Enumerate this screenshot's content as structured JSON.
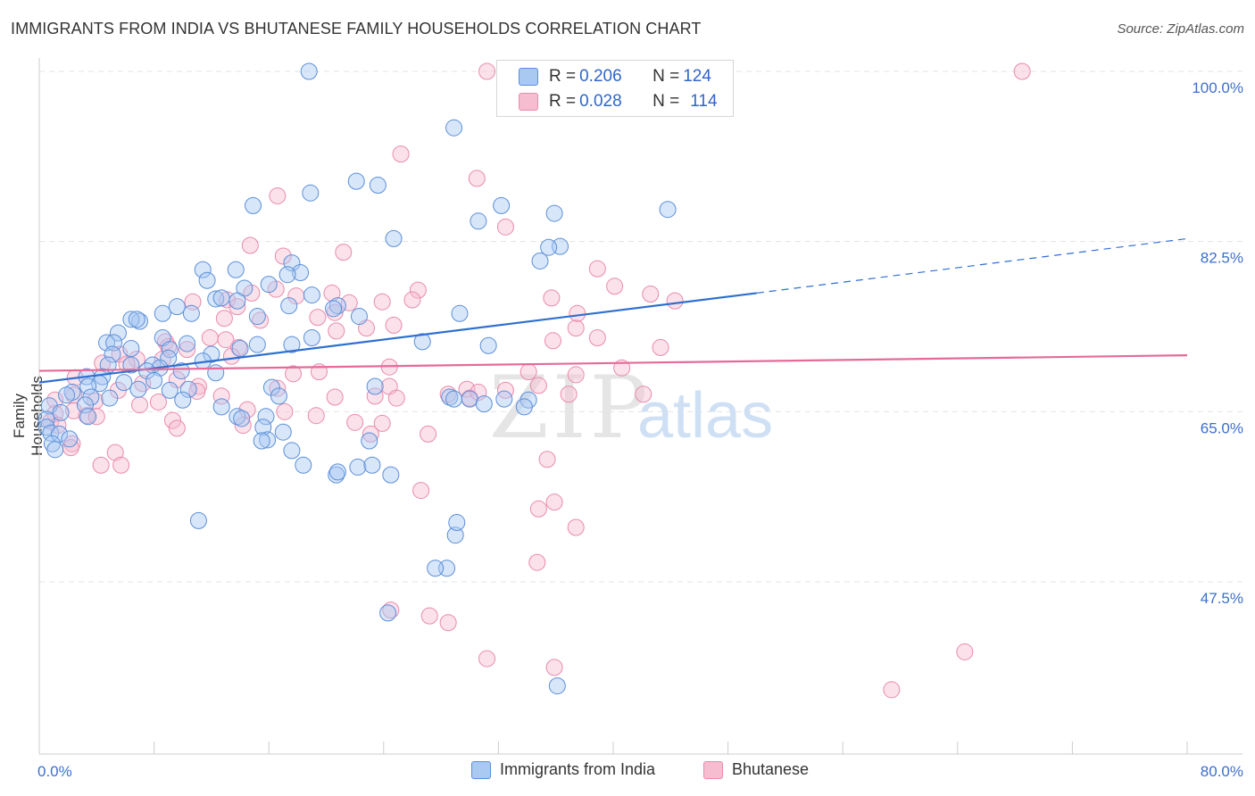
{
  "header": {
    "title": "IMMIGRANTS FROM INDIA VS BHUTANESE FAMILY HOUSEHOLDS CORRELATION CHART",
    "source": "Source: ZipAtlas.com"
  },
  "watermark": {
    "zip": "ZIP",
    "atlas": "atlas"
  },
  "legend_top": {
    "rows": [
      {
        "r_label": "R = ",
        "r_value": "0.206",
        "n_label": "N = ",
        "n_value": "124",
        "color": "#6fa0e8"
      },
      {
        "r_label": "R = ",
        "r_value": "0.028",
        "n_label": "N = ",
        "n_value": "114",
        "color": "#f08cb0"
      }
    ]
  },
  "colors": {
    "india_fill": "#a9c8f2",
    "india_stroke": "#5b8fd9",
    "india_line": "#2f6fd1",
    "bhutan_fill": "#f6bcd0",
    "bhutan_stroke": "#e98bad",
    "bhutan_line": "#e56a98",
    "axis_label": "#3a6fd0",
    "grid": "#e3e3e3"
  },
  "chart_data": {
    "type": "scatter",
    "title": "IMMIGRANTS FROM INDIA VS BHUTANESE FAMILY HOUSEHOLDS CORRELATION CHART",
    "xlabel": "",
    "ylabel": "Family Households",
    "xlim": [
      0,
      80
    ],
    "ylim": [
      34,
      102
    ],
    "x_tick_labels": [
      "0.0%",
      "80.0%"
    ],
    "y_ticks": [
      47.5,
      65.0,
      82.5,
      100.0
    ],
    "y_tick_labels": [
      "47.5%",
      "65.0%",
      "82.5%",
      "100.0%"
    ],
    "grid": true,
    "legend_placement": "top-center and bottom",
    "series": [
      {
        "name": "Immigrants from India",
        "r": 0.206,
        "n": 124,
        "trend": {
          "x0": 0,
          "y0": 68.0,
          "x1": 50,
          "y1": 77.2,
          "x_dash_end": 80,
          "y_dash_end": 82.8
        },
        "points": [
          [
            18.8,
            100
          ],
          [
            28.9,
            94.2
          ],
          [
            22.1,
            88.7
          ],
          [
            23.6,
            88.3
          ],
          [
            18.9,
            87.5
          ],
          [
            14.9,
            86.2
          ],
          [
            32.2,
            86.2
          ],
          [
            35.9,
            85.4
          ],
          [
            43.8,
            85.8
          ],
          [
            30.6,
            84.6
          ],
          [
            24.7,
            82.8
          ],
          [
            36.3,
            82
          ],
          [
            35.5,
            81.9
          ],
          [
            34.9,
            80.5
          ],
          [
            17.6,
            80.3
          ],
          [
            11.4,
            79.6
          ],
          [
            13.7,
            79.6
          ],
          [
            18.2,
            79.3
          ],
          [
            17.3,
            79.1
          ],
          [
            11.7,
            78.5
          ],
          [
            16.0,
            78.1
          ],
          [
            14.3,
            77.7
          ],
          [
            19.0,
            77.0
          ],
          [
            12.3,
            76.6
          ],
          [
            12.7,
            76.7
          ],
          [
            13.8,
            76.4
          ],
          [
            17.4,
            75.9
          ],
          [
            20.8,
            75.9
          ],
          [
            20.5,
            75.6
          ],
          [
            29.3,
            75.1
          ],
          [
            9.6,
            75.8
          ],
          [
            8.6,
            75.1
          ],
          [
            10.6,
            75.1
          ],
          [
            15.2,
            74.8
          ],
          [
            22.3,
            74.8
          ],
          [
            7.0,
            74.3
          ],
          [
            6.4,
            74.5
          ],
          [
            6.8,
            74.5
          ],
          [
            5.5,
            73.1
          ],
          [
            8.6,
            72.6
          ],
          [
            19.0,
            72.6
          ],
          [
            4.7,
            72.1
          ],
          [
            5.2,
            72.1
          ],
          [
            10.3,
            72.0
          ],
          [
            15.2,
            71.9
          ],
          [
            17.6,
            71.9
          ],
          [
            31.3,
            71.8
          ],
          [
            6.4,
            71.5
          ],
          [
            9.1,
            71.4
          ],
          [
            14.0,
            71.5
          ],
          [
            5.1,
            70.9
          ],
          [
            12.0,
            70.9
          ],
          [
            9.0,
            70.5
          ],
          [
            11.4,
            70.2
          ],
          [
            6.4,
            69.8
          ],
          [
            7.9,
            69.8
          ],
          [
            8.4,
            69.5
          ],
          [
            7.5,
            69.2
          ],
          [
            9.9,
            69.2
          ],
          [
            12.3,
            69.0
          ],
          [
            4.8,
            69.8
          ],
          [
            3.3,
            68.6
          ],
          [
            4.4,
            68.6
          ],
          [
            8.0,
            68.2
          ],
          [
            5.9,
            68.0
          ],
          [
            4.2,
            67.9
          ],
          [
            3.4,
            67.6
          ],
          [
            16.2,
            67.5
          ],
          [
            23.4,
            67.6
          ],
          [
            9.1,
            67.2
          ],
          [
            6.9,
            67.3
          ],
          [
            10.4,
            67.3
          ],
          [
            2.3,
            67.0
          ],
          [
            1.9,
            66.7
          ],
          [
            3.6,
            66.5
          ],
          [
            4.9,
            66.4
          ],
          [
            10.0,
            66.2
          ],
          [
            16.7,
            66.6
          ],
          [
            28.6,
            66.5
          ],
          [
            28.9,
            66.3
          ],
          [
            34.1,
            66.2
          ],
          [
            30.0,
            66.3
          ],
          [
            3.2,
            65.7
          ],
          [
            0.7,
            65.6
          ],
          [
            12.7,
            65.5
          ],
          [
            1.5,
            64.9
          ],
          [
            3.4,
            64.5
          ],
          [
            13.8,
            64.5
          ],
          [
            14.1,
            64.3
          ],
          [
            15.8,
            64.5
          ],
          [
            0.5,
            64.2
          ],
          [
            0.5,
            63.4
          ],
          [
            0.8,
            62.8
          ],
          [
            1.4,
            62.7
          ],
          [
            2.1,
            62.2
          ],
          [
            0.9,
            61.7
          ],
          [
            1.1,
            61.1
          ],
          [
            17.0,
            62.9
          ],
          [
            15.6,
            63.4
          ],
          [
            15.9,
            62.1
          ],
          [
            23.0,
            62.0
          ],
          [
            15.5,
            62.0
          ],
          [
            17.6,
            61.0
          ],
          [
            18.4,
            59.5
          ],
          [
            22.2,
            59.3
          ],
          [
            20.7,
            58.5
          ],
          [
            20.8,
            58.8
          ],
          [
            24.5,
            58.5
          ],
          [
            23.2,
            59.5
          ],
          [
            11.1,
            53.8
          ],
          [
            29.0,
            52.3
          ],
          [
            28.4,
            48.9
          ],
          [
            29.1,
            53.6
          ],
          [
            27.6,
            48.9
          ],
          [
            24.3,
            44.3
          ],
          [
            36.1,
            36.8
          ],
          [
            33.8,
            65.5
          ],
          [
            31.0,
            65.8
          ],
          [
            32.4,
            66.3
          ],
          [
            26.7,
            72.2
          ]
        ]
      },
      {
        "name": "Bhutanese",
        "r": 0.028,
        "n": 114,
        "trend": {
          "x0": 0,
          "y0": 69.2,
          "x1": 80,
          "y1": 70.8
        },
        "points": [
          [
            31.2,
            100
          ],
          [
            68.5,
            100
          ],
          [
            25.2,
            91.5
          ],
          [
            30.5,
            89.0
          ],
          [
            16.6,
            87.2
          ],
          [
            32.5,
            84.0
          ],
          [
            14.7,
            82.1
          ],
          [
            21.2,
            81.4
          ],
          [
            17.0,
            81.0
          ],
          [
            38.9,
            79.7
          ],
          [
            40.1,
            77.9
          ],
          [
            16.5,
            77.6
          ],
          [
            14.8,
            77.2
          ],
          [
            17.9,
            76.9
          ],
          [
            23.9,
            76.3
          ],
          [
            10.7,
            76.3
          ],
          [
            13.1,
            76.5
          ],
          [
            21.6,
            76.2
          ],
          [
            20.6,
            75.2
          ],
          [
            19.4,
            74.7
          ],
          [
            12.9,
            74.6
          ],
          [
            15.4,
            74.4
          ],
          [
            24.7,
            73.9
          ],
          [
            37.4,
            73.6
          ],
          [
            20.7,
            73.3
          ],
          [
            11.9,
            72.6
          ],
          [
            13.0,
            72.4
          ],
          [
            8.8,
            72.2
          ],
          [
            9.0,
            71.7
          ],
          [
            13.9,
            71.6
          ],
          [
            5.6,
            70.9
          ],
          [
            10.3,
            71.4
          ],
          [
            13.4,
            70.7
          ],
          [
            43.3,
            71.6
          ],
          [
            6.8,
            70.4
          ],
          [
            8.6,
            70.4
          ],
          [
            4.4,
            70.0
          ],
          [
            6.1,
            69.9
          ],
          [
            19.5,
            69.1
          ],
          [
            24.4,
            69.6
          ],
          [
            34.1,
            69.1
          ],
          [
            40.6,
            69.5
          ],
          [
            2.5,
            68.5
          ],
          [
            9.6,
            68.3
          ],
          [
            7.2,
            67.9
          ],
          [
            11.1,
            67.6
          ],
          [
            16.6,
            67.4
          ],
          [
            24.4,
            67.6
          ],
          [
            29.8,
            67.3
          ],
          [
            32.5,
            67.2
          ],
          [
            34.8,
            67.7
          ],
          [
            5.5,
            67.2
          ],
          [
            11.0,
            67.1
          ],
          [
            2.4,
            66.7
          ],
          [
            1.1,
            66.2
          ],
          [
            12.7,
            66.6
          ],
          [
            20.6,
            66.5
          ],
          [
            23.4,
            66.6
          ],
          [
            24.9,
            66.4
          ],
          [
            30.0,
            66.4
          ],
          [
            28.5,
            66.8
          ],
          [
            36.9,
            66.8
          ],
          [
            3.9,
            66.1
          ],
          [
            7.0,
            65.7
          ],
          [
            8.3,
            66.0
          ],
          [
            14.5,
            65.2
          ],
          [
            17.1,
            65.0
          ],
          [
            1.1,
            64.8
          ],
          [
            2.4,
            65.1
          ],
          [
            3.3,
            64.6
          ],
          [
            4.0,
            64.5
          ],
          [
            0.8,
            64.0
          ],
          [
            9.3,
            64.1
          ],
          [
            19.3,
            64.6
          ],
          [
            22.0,
            63.9
          ],
          [
            23.9,
            63.8
          ],
          [
            1.3,
            63.6
          ],
          [
            9.6,
            63.3
          ],
          [
            14.2,
            63.6
          ],
          [
            23.1,
            62.7
          ],
          [
            27.1,
            62.7
          ],
          [
            2.3,
            61.7
          ],
          [
            2.2,
            61.3
          ],
          [
            5.3,
            60.8
          ],
          [
            5.7,
            59.5
          ],
          [
            4.3,
            59.5
          ],
          [
            35.4,
            60.1
          ],
          [
            26.6,
            56.9
          ],
          [
            35.9,
            55.7
          ],
          [
            34.8,
            55.0
          ],
          [
            37.4,
            53.1
          ],
          [
            34.7,
            49.5
          ],
          [
            24.5,
            44.6
          ],
          [
            27.2,
            44.0
          ],
          [
            28.5,
            43.3
          ],
          [
            31.2,
            39.6
          ],
          [
            35.9,
            38.7
          ],
          [
            64.5,
            40.3
          ],
          [
            59.4,
            36.4
          ],
          [
            30.6,
            67.0
          ],
          [
            35.8,
            72.3
          ],
          [
            38.9,
            72.6
          ],
          [
            37.5,
            75.1
          ],
          [
            44.3,
            76.4
          ],
          [
            42.6,
            77.1
          ],
          [
            35.7,
            76.7
          ],
          [
            26.4,
            77.5
          ],
          [
            37.4,
            68.8
          ],
          [
            42.1,
            66.8
          ],
          [
            20.4,
            77.2
          ],
          [
            26.0,
            76.5
          ],
          [
            17.7,
            68.9
          ],
          [
            22.8,
            73.6
          ],
          [
            13.8,
            75.8
          ]
        ]
      }
    ]
  },
  "legend_bottom": {
    "items": [
      {
        "label": "Immigrants from India",
        "color": "#a9c8f2"
      },
      {
        "label": "Bhutanese",
        "color": "#f6bcd0"
      }
    ]
  }
}
